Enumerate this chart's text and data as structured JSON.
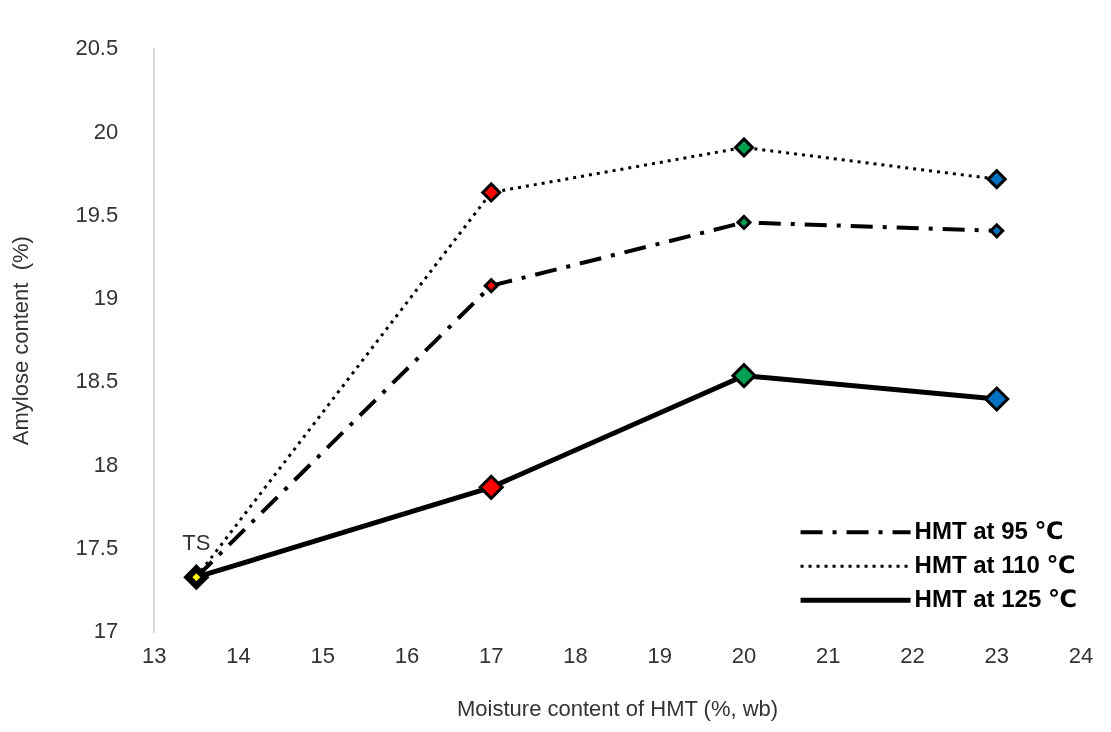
{
  "chart_data": {
    "type": "line",
    "xlabel": "Moisture content of HMT (%, wb)",
    "ylabel": "Amylose content  (%)",
    "x": [
      13.5,
      17,
      20,
      23
    ],
    "series": [
      {
        "name": "HMT at 95 ℃",
        "color": "#000000",
        "line_style": "dashed",
        "colors": [
          "#ffff00",
          "#ff0000",
          "#00a050",
          "#0070c0"
        ],
        "values": [
          17.33,
          19.08,
          19.46,
          19.41
        ]
      },
      {
        "name": "HMT at 110 ℃",
        "color": "#000000",
        "line_style": "dotted",
        "colors": [
          "#ffff00",
          "#ff0000",
          "#00a050",
          "#0070c0"
        ],
        "values": [
          17.33,
          19.64,
          19.91,
          19.72
        ]
      },
      {
        "name": "HMT at 125 ℃",
        "color": "#000000",
        "line_style": "solid",
        "colors": [
          "#ffff00",
          "#ff0000",
          "#00a050",
          "#0070c0"
        ],
        "values": [
          17.33,
          17.87,
          18.54,
          18.4
        ]
      }
    ],
    "xlim": [
      13,
      24
    ],
    "xticks": [
      13,
      14,
      15,
      16,
      17,
      18,
      19,
      20,
      21,
      22,
      23,
      24
    ],
    "ylim": [
      17,
      20.5
    ],
    "yticks": [
      17,
      17.5,
      18,
      18.5,
      19,
      19.5,
      20,
      20.5
    ],
    "grid": false,
    "legend": "bottom right",
    "marker": "diamond",
    "annotations": [
      {
        "text": "TS",
        "x": 13.5,
        "y": 17.33
      }
    ]
  }
}
